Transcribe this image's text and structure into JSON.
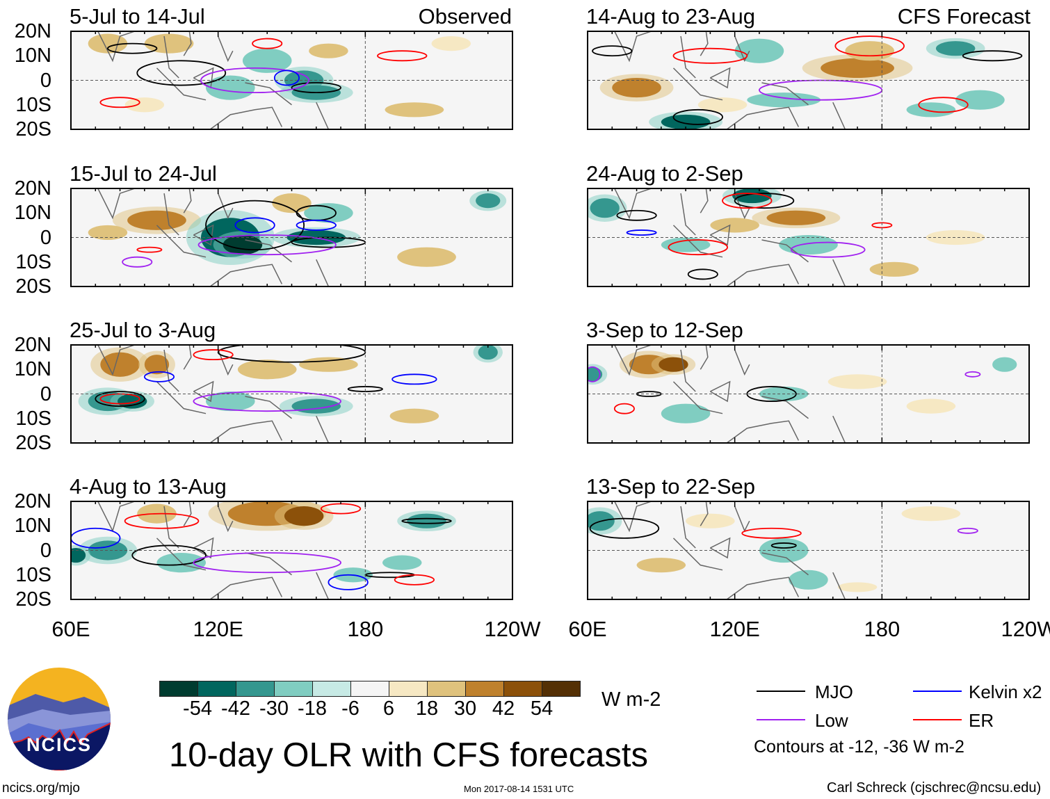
{
  "headers": {
    "observed": "Observed",
    "forecast": "CFS Forecast"
  },
  "panels": [
    {
      "title": "5-Jul to 14-Jul",
      "group": "observed"
    },
    {
      "title": "15-Jul to 24-Jul",
      "group": "observed"
    },
    {
      "title": "25-Jul to 3-Aug",
      "group": "observed"
    },
    {
      "title": "4-Aug to 13-Aug",
      "group": "observed"
    },
    {
      "title": "14-Aug to 23-Aug",
      "group": "forecast"
    },
    {
      "title": "24-Aug to 2-Sep",
      "group": "forecast"
    },
    {
      "title": "3-Sep to 12-Sep",
      "group": "forecast"
    },
    {
      "title": "13-Sep to 22-Sep",
      "group": "forecast"
    }
  ],
  "lat_labels": [
    "20N",
    "10N",
    "0",
    "10S",
    "20S"
  ],
  "lon_labels": [
    "60E",
    "120E",
    "180",
    "120W"
  ],
  "colorbar": {
    "colors": [
      "#003c30",
      "#01665e",
      "#35978f",
      "#80cdc1",
      "#c7eae5",
      "#f5f5f5",
      "#f6e8c3",
      "#dfc27d",
      "#bf812d",
      "#8c510a",
      "#543005"
    ],
    "ticks": [
      "-54",
      "-42",
      "-30",
      "-18",
      "-6",
      "6",
      "18",
      "30",
      "42",
      "54"
    ],
    "units": "W m-2"
  },
  "title": "10-day OLR with CFS forecasts",
  "legend": {
    "items": [
      {
        "label": "MJO",
        "color": "#000000"
      },
      {
        "label": "Kelvin x2",
        "color": "#0000ff"
      },
      {
        "label": "Low",
        "color": "#a020f0"
      },
      {
        "label": "ER",
        "color": "#ff0000"
      }
    ],
    "note": "Contours at -12, -36 W m-2"
  },
  "logo": {
    "text": "NCICS"
  },
  "footer": {
    "url": "ncics.org/mjo",
    "timestamp": "Mon 2017-08-14 1531 UTC",
    "credit": "Carl Schreck (cjschrec@ncsu.edu)"
  }
}
